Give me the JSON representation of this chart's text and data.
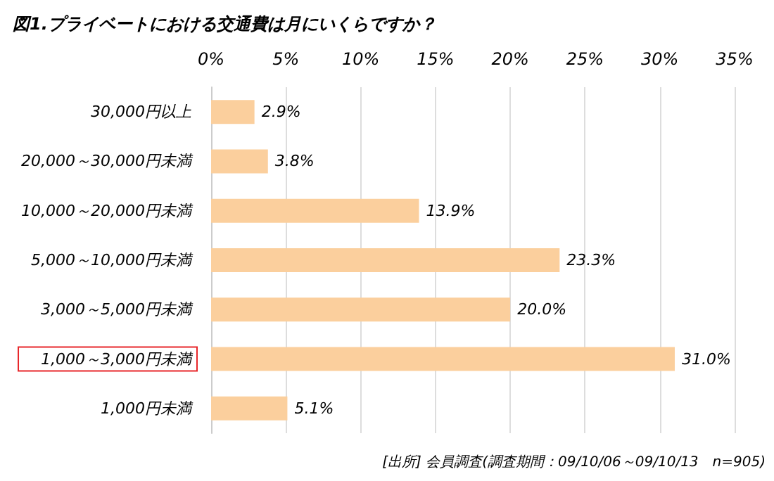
{
  "chart_data": {
    "type": "bar",
    "orientation": "horizontal",
    "title": "図1.プライベートにおける交通費は月にいくらですか？",
    "categories": [
      "30,000円以上",
      "20,000～30,000円未満",
      "10,000～20,000円未満",
      "5,000～10,000円未満",
      "3,000～5,000円未満",
      "1,000～3,000円未満",
      "1,000円未満"
    ],
    "values": [
      2.9,
      3.8,
      13.9,
      23.3,
      20.0,
      31.0,
      5.1
    ],
    "value_labels": [
      "2.9%",
      "3.8%",
      "13.9%",
      "23.3%",
      "20.0%",
      "31.0%",
      "5.1%"
    ],
    "color": "#fbcf9d",
    "xlim": [
      0,
      35
    ],
    "xticks": [
      {
        "value": 0,
        "label": "0%"
      },
      {
        "value": 5,
        "label": "5%"
      },
      {
        "value": 10,
        "label": "10%"
      },
      {
        "value": 15,
        "label": "15%"
      },
      {
        "value": 20,
        "label": "20%"
      },
      {
        "value": 25,
        "label": "25%"
      },
      {
        "value": 30,
        "label": "30%"
      },
      {
        "value": 35,
        "label": "35%"
      }
    ],
    "grid": "x",
    "annotations": [
      "[出所] 会員調査(調査期間：09/10/06～09/10/13　n=905)"
    ]
  }
}
